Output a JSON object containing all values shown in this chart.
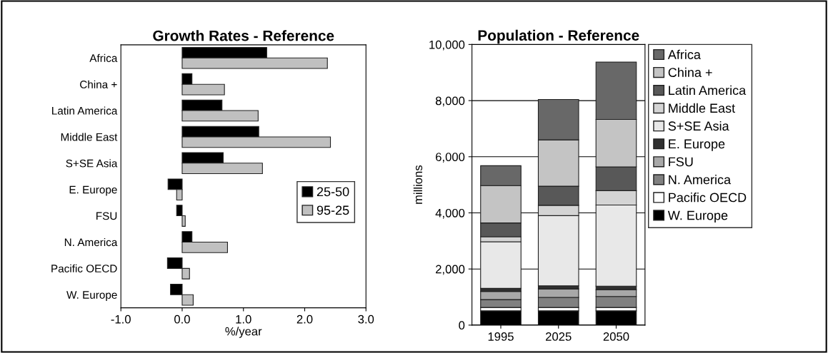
{
  "chart_data": [
    {
      "type": "bar",
      "orientation": "horizontal",
      "title": "Growth Rates - Reference",
      "xlabel": "%/year",
      "categories": [
        "Africa",
        "China +",
        "Latin America",
        "Middle East",
        "S+SE Asia",
        "E. Europe",
        "FSU",
        "N. America",
        "Pacific OECD",
        "W. Europe"
      ],
      "series": [
        {
          "name": "25-50",
          "color": "#000000",
          "values": [
            1.38,
            0.16,
            0.65,
            1.25,
            0.67,
            -0.23,
            -0.09,
            0.16,
            -0.24,
            -0.19
          ]
        },
        {
          "name": "95-25",
          "color": "#c0c0c0",
          "values": [
            2.37,
            0.69,
            1.24,
            2.42,
            1.31,
            -0.09,
            0.05,
            0.74,
            0.12,
            0.18
          ]
        }
      ],
      "xlim": [
        -1,
        3
      ],
      "xticks": [
        {
          "value": -1,
          "label": "-1.0"
        },
        {
          "value": 0,
          "label": "0.0"
        },
        {
          "value": 1,
          "label": "1.0"
        },
        {
          "value": 2,
          "label": "2.0"
        },
        {
          "value": 3,
          "label": "3.0"
        }
      ],
      "grid": false,
      "legend": "bottom right"
    },
    {
      "type": "bar",
      "stacked": true,
      "title": "Population - Reference",
      "ylabel": "millions",
      "categories": [
        "1995",
        "2025",
        "2050"
      ],
      "series": [
        {
          "name": "W. Europe",
          "color": "#000000",
          "values": [
            510,
            510,
            510
          ]
        },
        {
          "name": "Pacific OECD",
          "color": "#ffffff",
          "values": [
            120,
            120,
            120
          ]
        },
        {
          "name": "N. America",
          "color": "#808080",
          "values": [
            280,
            360,
            390
          ]
        },
        {
          "name": "FSU",
          "color": "#a8a8a8",
          "values": [
            290,
            300,
            240
          ]
        },
        {
          "name": "E. Europe",
          "color": "#303030",
          "values": [
            110,
            110,
            130
          ]
        },
        {
          "name": "S+SE Asia",
          "color": "#e8e8e8",
          "values": [
            1660,
            2500,
            2890
          ]
        },
        {
          "name": "Middle East",
          "color": "#d4d4d4",
          "values": [
            180,
            370,
            510
          ]
        },
        {
          "name": "Latin America",
          "color": "#585858",
          "values": [
            490,
            680,
            850
          ]
        },
        {
          "name": "China +",
          "color": "#c4c4c4",
          "values": [
            1330,
            1650,
            1690
          ]
        },
        {
          "name": "Africa",
          "color": "#686868",
          "values": [
            710,
            1440,
            2040
          ]
        }
      ],
      "ylim": [
        0,
        10000
      ],
      "yticks": [
        0,
        {
          "value": 2000,
          "label": "2,000"
        },
        {
          "value": 4000,
          "label": "4,000"
        },
        {
          "value": 6000,
          "label": "6,000"
        },
        {
          "value": 8000,
          "label": "8,000"
        },
        {
          "value": 10000,
          "label": "10,000"
        }
      ],
      "grid": "y",
      "legend": "right"
    }
  ]
}
